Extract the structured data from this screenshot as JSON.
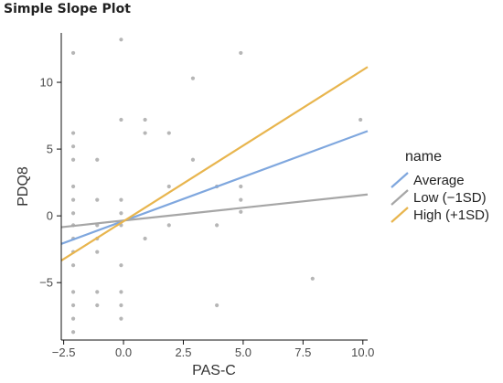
{
  "chart_data": {
    "type": "scatter",
    "title": "Simple Slope Plot",
    "xlabel": "PAS-C",
    "ylabel": "PDQ8",
    "xlim": [
      -2.6,
      10.2
    ],
    "ylim": [
      -9.3,
      13.7
    ],
    "x_ticks": [
      -2.5,
      0.0,
      2.5,
      5.0,
      7.5,
      10.0
    ],
    "x_tick_labels": [
      "−2.5",
      "0.0",
      "2.5",
      "5.0",
      "7.5",
      "10.0"
    ],
    "y_ticks": [
      -5,
      0,
      5,
      10
    ],
    "y_tick_labels": [
      "−5",
      "0",
      "5",
      "10"
    ],
    "legend": {
      "title": "name",
      "position": "right"
    },
    "lines": [
      {
        "name": "Average",
        "color": "#7FA7DE",
        "x": [
          -2.6,
          10.2
        ],
        "y": [
          -2.1,
          6.35
        ]
      },
      {
        "name": "Low (−1SD)",
        "color": "#A6A6A6",
        "x": [
          -2.6,
          10.2
        ],
        "y": [
          -0.85,
          1.6
        ]
      },
      {
        "name": "High (+1SD)",
        "color": "#E8B54E",
        "x": [
          -2.6,
          10.2
        ],
        "y": [
          -3.35,
          11.15
        ]
      }
    ],
    "points": [
      {
        "x": -2.1,
        "y": 12.2
      },
      {
        "x": -2.1,
        "y": 6.2
      },
      {
        "x": -2.1,
        "y": 5.2
      },
      {
        "x": -2.1,
        "y": 4.2
      },
      {
        "x": -2.1,
        "y": 2.2
      },
      {
        "x": -2.1,
        "y": 1.2
      },
      {
        "x": -2.1,
        "y": 0.2
      },
      {
        "x": -2.1,
        "y": -0.7
      },
      {
        "x": -2.1,
        "y": -1.7
      },
      {
        "x": -2.1,
        "y": -2.7
      },
      {
        "x": -2.1,
        "y": -3.7
      },
      {
        "x": -2.1,
        "y": -5.7
      },
      {
        "x": -2.1,
        "y": -6.7
      },
      {
        "x": -2.1,
        "y": -7.7
      },
      {
        "x": -2.1,
        "y": -8.7
      },
      {
        "x": -1.1,
        "y": 4.2
      },
      {
        "x": -1.1,
        "y": 1.2
      },
      {
        "x": -1.1,
        "y": -0.7
      },
      {
        "x": -1.1,
        "y": -1.7
      },
      {
        "x": -1.1,
        "y": -2.7
      },
      {
        "x": -1.1,
        "y": -5.7
      },
      {
        "x": -1.1,
        "y": -6.7
      },
      {
        "x": -0.1,
        "y": 13.2
      },
      {
        "x": -0.1,
        "y": 7.2
      },
      {
        "x": -0.1,
        "y": 1.2
      },
      {
        "x": -0.1,
        "y": 0.2
      },
      {
        "x": -0.1,
        "y": -0.7
      },
      {
        "x": -0.1,
        "y": -3.7
      },
      {
        "x": -0.1,
        "y": -5.7
      },
      {
        "x": -0.1,
        "y": -6.7
      },
      {
        "x": -0.1,
        "y": -7.7
      },
      {
        "x": 0.9,
        "y": 7.2
      },
      {
        "x": 0.9,
        "y": 6.2
      },
      {
        "x": 0.9,
        "y": -1.7
      },
      {
        "x": 1.9,
        "y": 6.2
      },
      {
        "x": 1.9,
        "y": 2.2
      },
      {
        "x": 1.9,
        "y": -0.7
      },
      {
        "x": 2.9,
        "y": 10.3
      },
      {
        "x": 2.9,
        "y": 4.2
      },
      {
        "x": 3.9,
        "y": 2.2
      },
      {
        "x": 3.9,
        "y": -0.7
      },
      {
        "x": 3.9,
        "y": -6.7
      },
      {
        "x": 4.9,
        "y": 12.2
      },
      {
        "x": 4.9,
        "y": 2.2
      },
      {
        "x": 4.9,
        "y": 1.2
      },
      {
        "x": 4.9,
        "y": 0.3
      },
      {
        "x": 7.9,
        "y": -4.7
      },
      {
        "x": 9.9,
        "y": 7.2
      }
    ],
    "point_color": "#9E9E9E"
  }
}
